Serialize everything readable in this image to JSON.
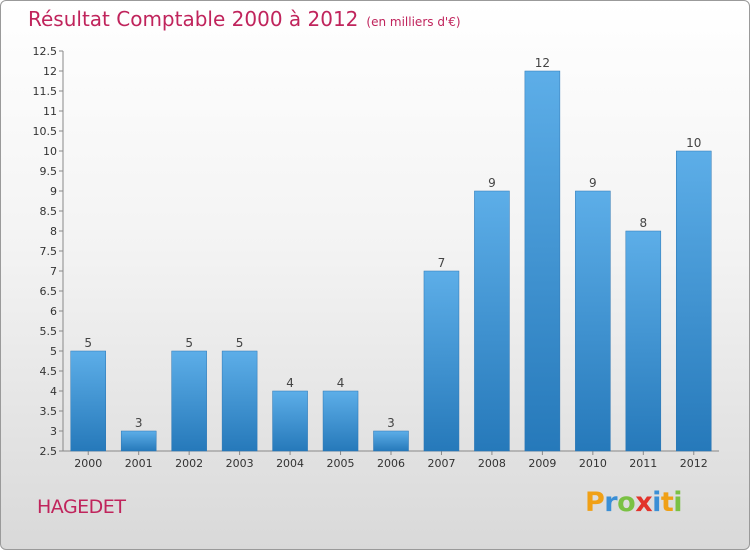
{
  "header": {
    "title": "Résultat Comptable 2000 à 2012",
    "unit": "(en milliers d'€)"
  },
  "commune": "HAGEDET",
  "logo": {
    "letters": [
      "P",
      "r",
      "o",
      "x",
      "i",
      "t",
      "i"
    ],
    "colors": [
      "#f0a016",
      "#3a8fd6",
      "#7ac143",
      "#e2332b",
      "#3a8fd6",
      "#f0a016",
      "#7ac143"
    ]
  },
  "chart_data": {
    "type": "bar",
    "title": "Résultat Comptable 2000 à 2012",
    "unit": "(en milliers d'€)",
    "categories": [
      "2000",
      "2001",
      "2002",
      "2003",
      "2004",
      "2005",
      "2006",
      "2007",
      "2008",
      "2009",
      "2010",
      "2011",
      "2012"
    ],
    "values": [
      5,
      3,
      5,
      5,
      4,
      4,
      3,
      7,
      9,
      12,
      9,
      8,
      10
    ],
    "ylim": [
      2.5,
      12.5
    ],
    "yticks": [
      "2.5",
      "3",
      "3.5",
      "4",
      "4.5",
      "5",
      "5.5",
      "6",
      "6.5",
      "7",
      "7.5",
      "8",
      "8.5",
      "9",
      "9.5",
      "10",
      "10.5",
      "11",
      "11.5",
      "12",
      "12.5"
    ],
    "grid": false,
    "bar_color": "#3d95d9"
  }
}
